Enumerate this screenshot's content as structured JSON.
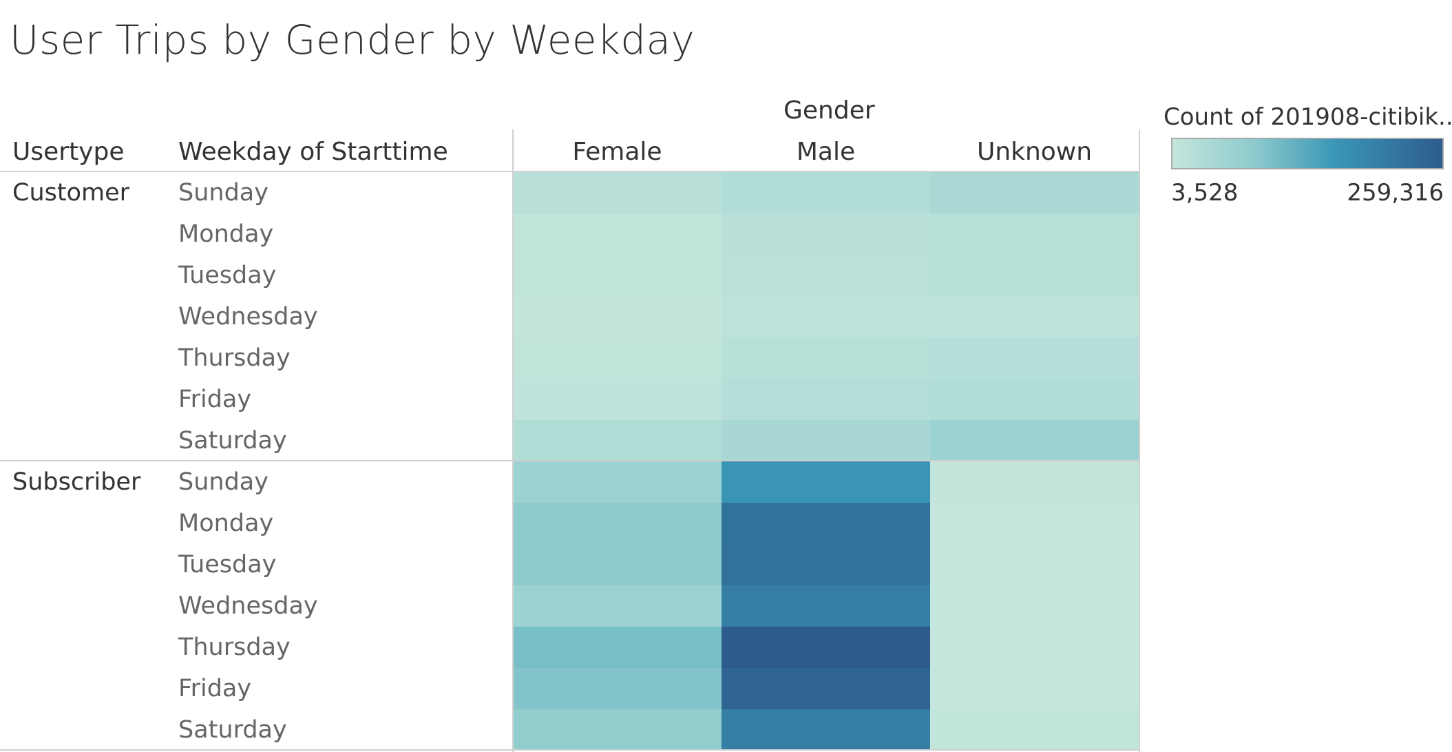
{
  "title": "User Trips by Gender by Weekday",
  "headers": {
    "column_group": "Gender",
    "usertype": "Usertype",
    "weekday": "Weekday of Starttime"
  },
  "legend": {
    "title": "Count of 201908-citibik..",
    "min_label": "3,528",
    "max_label": "259,316",
    "min": 3528,
    "max": 259316,
    "color_low": "#c4e6dc",
    "color_high": "#2d5c8c"
  },
  "chart_data": {
    "type": "heatmap",
    "title": "User Trips by Gender by Weekday",
    "columns": [
      "Female",
      "Male",
      "Unknown"
    ],
    "groups": [
      {
        "usertype": "Customer",
        "rows": [
          {
            "weekday": "Sunday",
            "values": [
              20000,
              30000,
              40000
            ]
          },
          {
            "weekday": "Monday",
            "values": [
              8000,
              20000,
              22000
            ]
          },
          {
            "weekday": "Tuesday",
            "values": [
              7000,
              19000,
              22000
            ]
          },
          {
            "weekday": "Wednesday",
            "values": [
              5000,
              12000,
              13000
            ]
          },
          {
            "weekday": "Thursday",
            "values": [
              8000,
              22000,
              25000
            ]
          },
          {
            "weekday": "Friday",
            "values": [
              9000,
              25000,
              30000
            ]
          },
          {
            "weekday": "Saturday",
            "values": [
              30000,
              42000,
              60000
            ]
          }
        ]
      },
      {
        "usertype": "Subscriber",
        "rows": [
          {
            "weekday": "Sunday",
            "values": [
              60000,
              160000,
              5000
            ]
          },
          {
            "weekday": "Monday",
            "values": [
              80000,
              220000,
              4000
            ]
          },
          {
            "weekday": "Tuesday",
            "values": [
              80000,
              222000,
              4000
            ]
          },
          {
            "weekday": "Wednesday",
            "values": [
              60000,
              200000,
              3528
            ]
          },
          {
            "weekday": "Thursday",
            "values": [
              100000,
              259316,
              4000
            ]
          },
          {
            "weekday": "Friday",
            "values": [
              90000,
              245000,
              4000
            ]
          },
          {
            "weekday": "Saturday",
            "values": [
              75000,
              200000,
              4500
            ]
          }
        ]
      }
    ]
  }
}
